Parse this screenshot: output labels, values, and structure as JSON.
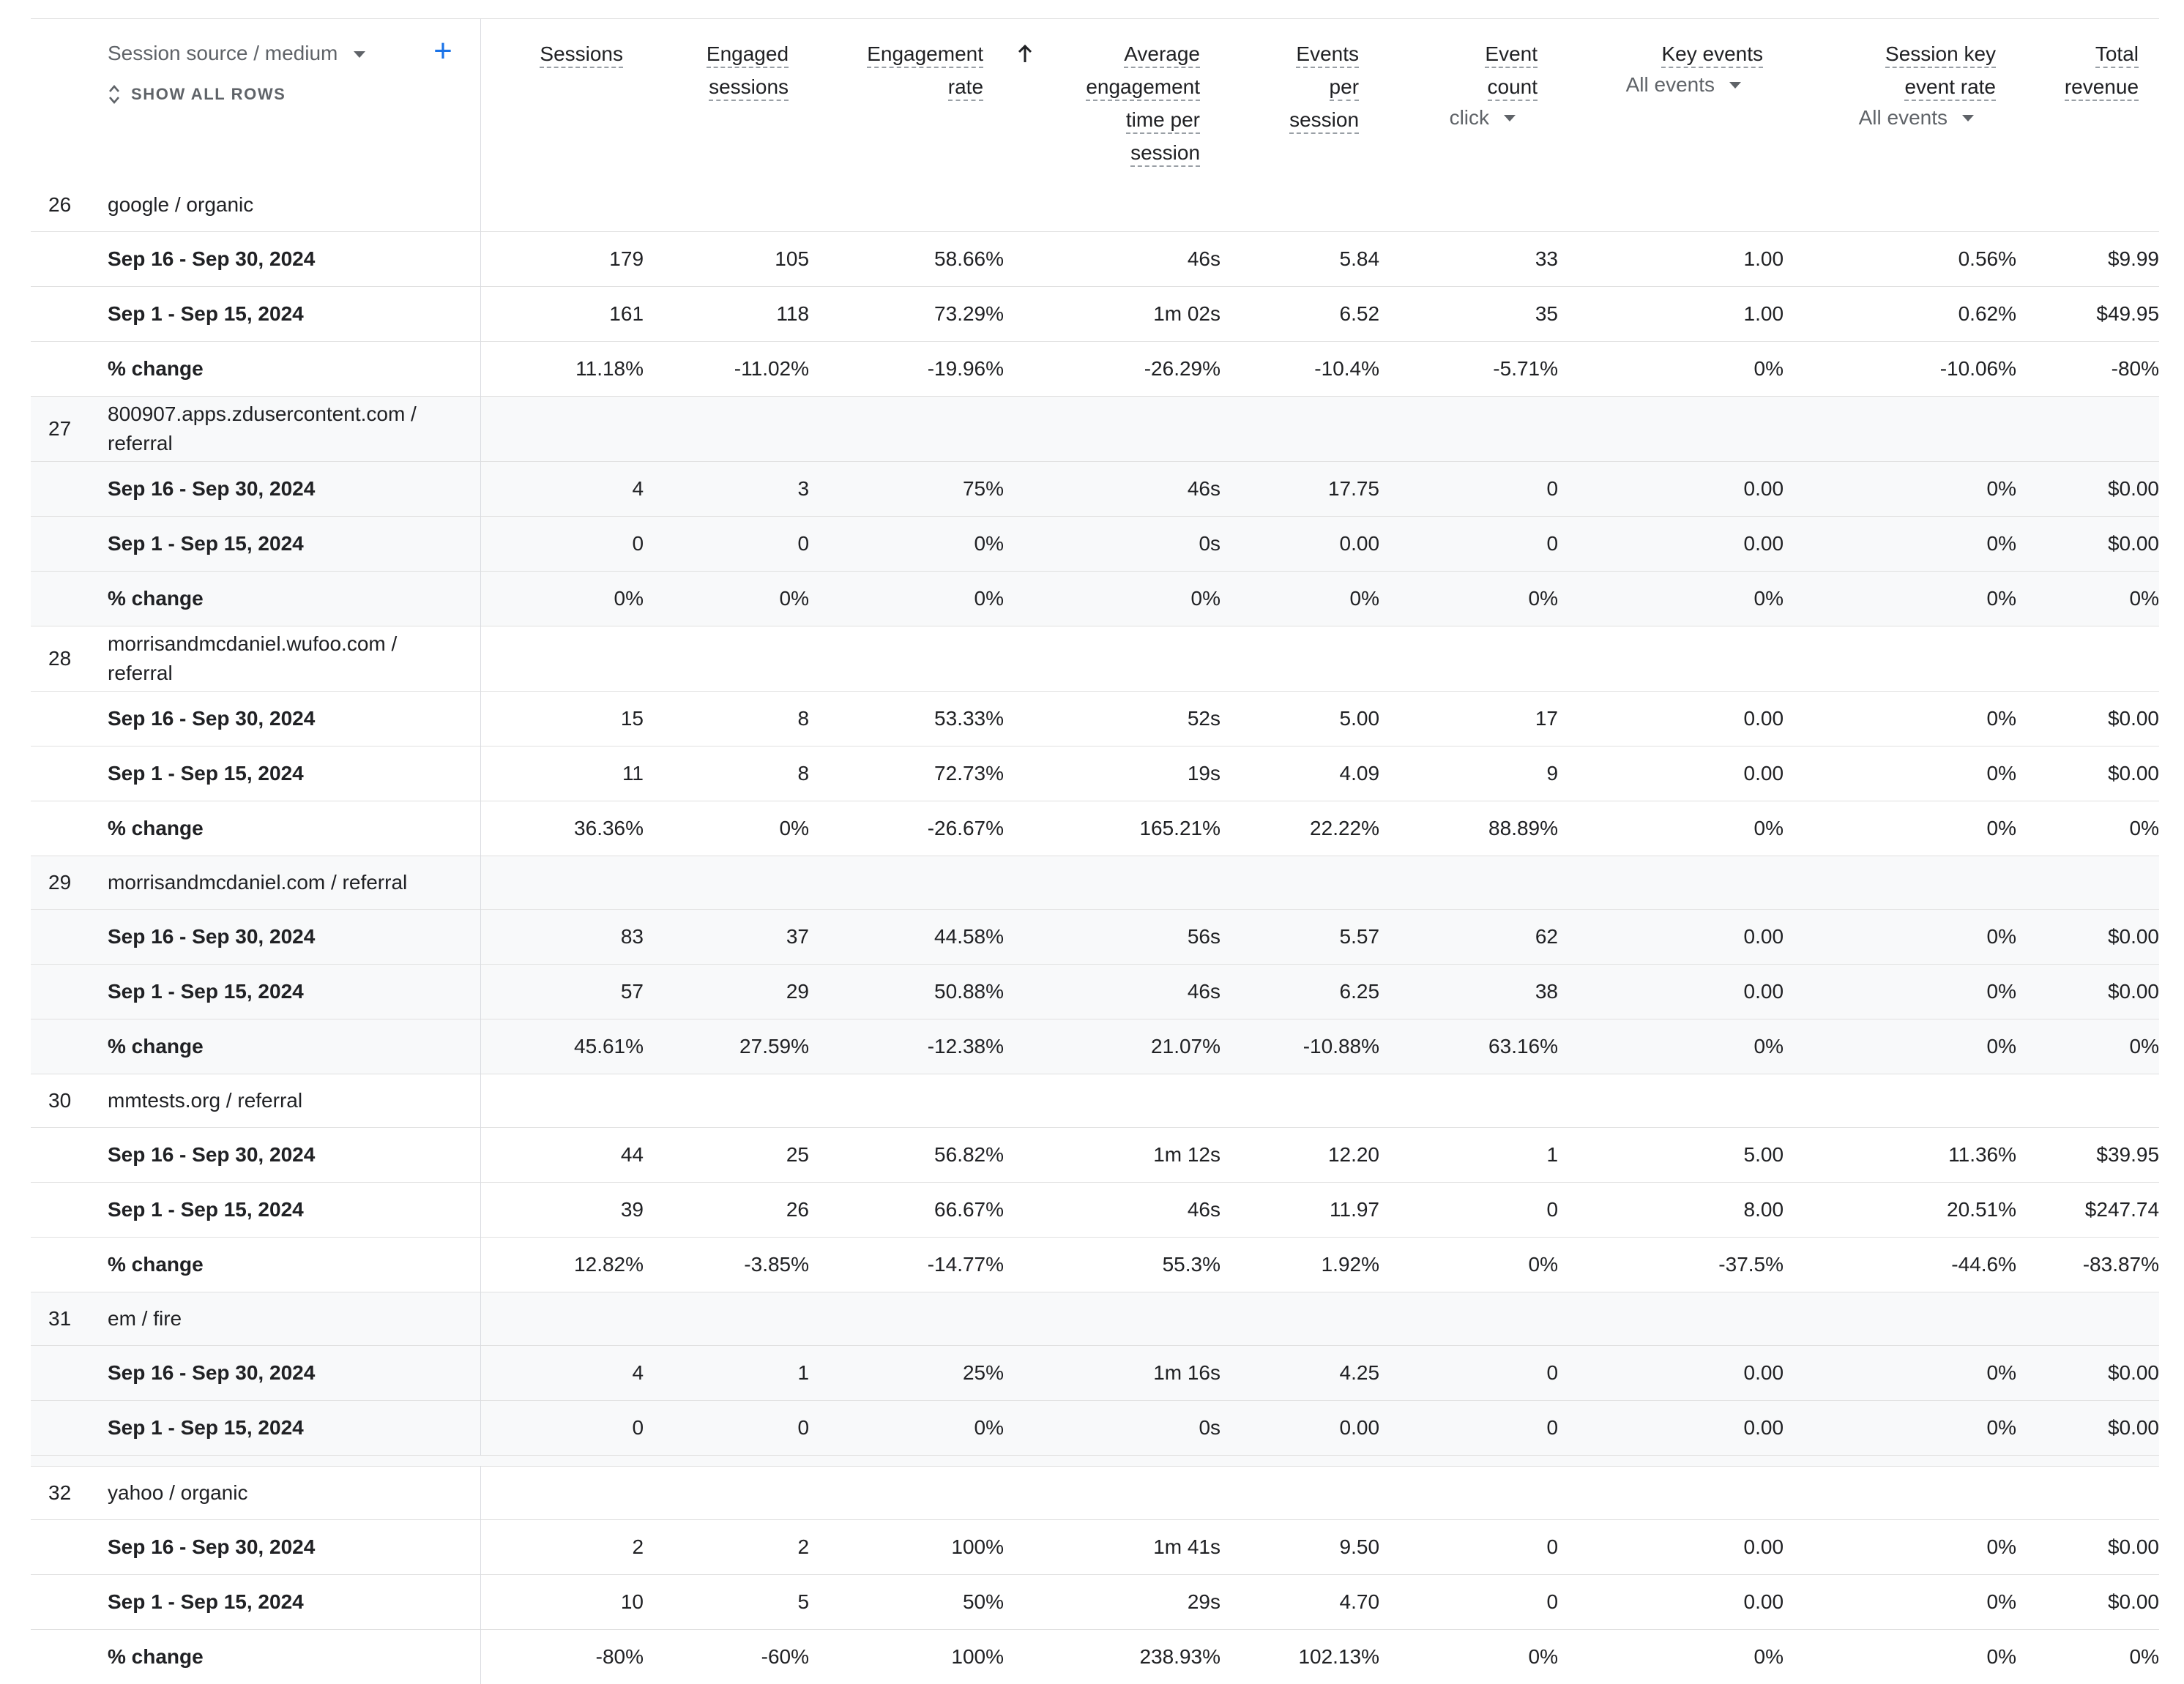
{
  "header": {
    "dimension_label": "Session source / medium",
    "add_button": "+",
    "show_all_rows": "SHOW ALL ROWS",
    "columns": [
      {
        "key": "sessions",
        "lines": [
          "Sessions"
        ],
        "sub": ""
      },
      {
        "key": "engaged",
        "lines": [
          "Engaged",
          "sessions"
        ],
        "sub": ""
      },
      {
        "key": "rate",
        "lines": [
          "Engagement",
          "rate"
        ],
        "sub": "",
        "sorted": true
      },
      {
        "key": "avgtime",
        "lines": [
          "Average",
          "engagement",
          "time per",
          "session"
        ],
        "sub": ""
      },
      {
        "key": "eps",
        "lines": [
          "Events",
          "per",
          "session"
        ],
        "sub": ""
      },
      {
        "key": "evcount",
        "lines": [
          "Event",
          "count"
        ],
        "sub": "click"
      },
      {
        "key": "keyev",
        "lines": [
          "Key events"
        ],
        "sub": "All events"
      },
      {
        "key": "skr",
        "lines": [
          "Session key",
          "event rate"
        ],
        "sub": "All events"
      },
      {
        "key": "rev",
        "lines": [
          "Total",
          "revenue"
        ],
        "sub": ""
      }
    ]
  },
  "groups": [
    {
      "num": "26",
      "name": [
        "google / organic"
      ],
      "shaded": false,
      "rows": [
        {
          "label": "Sep 16 - Sep 30, 2024",
          "values": [
            "179",
            "105",
            "58.66%",
            "46s",
            "5.84",
            "33",
            "1.00",
            "0.56%",
            "$9.99"
          ]
        },
        {
          "label": "Sep 1 - Sep 15, 2024",
          "values": [
            "161",
            "118",
            "73.29%",
            "1m 02s",
            "6.52",
            "35",
            "1.00",
            "0.62%",
            "$49.95"
          ]
        },
        {
          "label": "% change",
          "values": [
            "11.18%",
            "-11.02%",
            "-19.96%",
            "-26.29%",
            "-10.4%",
            "-5.71%",
            "0%",
            "-10.06%",
            "-80%"
          ]
        }
      ]
    },
    {
      "num": "27",
      "name": [
        "800907.apps.zdusercontent.com /",
        "referral"
      ],
      "shaded": true,
      "rows": [
        {
          "label": "Sep 16 - Sep 30, 2024",
          "values": [
            "4",
            "3",
            "75%",
            "46s",
            "17.75",
            "0",
            "0.00",
            "0%",
            "$0.00"
          ]
        },
        {
          "label": "Sep 1 - Sep 15, 2024",
          "values": [
            "0",
            "0",
            "0%",
            "0s",
            "0.00",
            "0",
            "0.00",
            "0%",
            "$0.00"
          ]
        },
        {
          "label": "% change",
          "values": [
            "0%",
            "0%",
            "0%",
            "0%",
            "0%",
            "0%",
            "0%",
            "0%",
            "0%"
          ]
        }
      ]
    },
    {
      "num": "28",
      "name": [
        "morrisandmcdaniel.wufoo.com /",
        "referral"
      ],
      "shaded": false,
      "rows": [
        {
          "label": "Sep 16 - Sep 30, 2024",
          "values": [
            "15",
            "8",
            "53.33%",
            "52s",
            "5.00",
            "17",
            "0.00",
            "0%",
            "$0.00"
          ]
        },
        {
          "label": "Sep 1 - Sep 15, 2024",
          "values": [
            "11",
            "8",
            "72.73%",
            "19s",
            "4.09",
            "9",
            "0.00",
            "0%",
            "$0.00"
          ]
        },
        {
          "label": "% change",
          "values": [
            "36.36%",
            "0%",
            "-26.67%",
            "165.21%",
            "22.22%",
            "88.89%",
            "0%",
            "0%",
            "0%"
          ]
        }
      ]
    },
    {
      "num": "29",
      "name": [
        "morrisandmcdaniel.com / referral"
      ],
      "shaded": true,
      "rows": [
        {
          "label": "Sep 16 - Sep 30, 2024",
          "values": [
            "83",
            "37",
            "44.58%",
            "56s",
            "5.57",
            "62",
            "0.00",
            "0%",
            "$0.00"
          ]
        },
        {
          "label": "Sep 1 - Sep 15, 2024",
          "values": [
            "57",
            "29",
            "50.88%",
            "46s",
            "6.25",
            "38",
            "0.00",
            "0%",
            "$0.00"
          ]
        },
        {
          "label": "% change",
          "values": [
            "45.61%",
            "27.59%",
            "-12.38%",
            "21.07%",
            "-10.88%",
            "63.16%",
            "0%",
            "0%",
            "0%"
          ]
        }
      ]
    },
    {
      "num": "30",
      "name": [
        "mmtests.org / referral"
      ],
      "shaded": false,
      "rows": [
        {
          "label": "Sep 16 - Sep 30, 2024",
          "values": [
            "44",
            "25",
            "56.82%",
            "1m 12s",
            "12.20",
            "1",
            "5.00",
            "11.36%",
            "$39.95"
          ]
        },
        {
          "label": "Sep 1 - Sep 15, 2024",
          "values": [
            "39",
            "26",
            "66.67%",
            "46s",
            "11.97",
            "0",
            "8.00",
            "20.51%",
            "$247.74"
          ]
        },
        {
          "label": "% change",
          "values": [
            "12.82%",
            "-3.85%",
            "-14.77%",
            "55.3%",
            "1.92%",
            "0%",
            "-37.5%",
            "-44.6%",
            "-83.87%"
          ]
        }
      ]
    },
    {
      "num": "31",
      "name": [
        "em / fire"
      ],
      "shaded": true,
      "cut": true,
      "rows": [
        {
          "label": "Sep 16 - Sep 30, 2024",
          "values": [
            "4",
            "1",
            "25%",
            "1m 16s",
            "4.25",
            "0",
            "0.00",
            "0%",
            "$0.00"
          ]
        },
        {
          "label": "Sep 1 - Sep 15, 2024",
          "values": [
            "0",
            "0",
            "0%",
            "0s",
            "0.00",
            "0",
            "0.00",
            "0%",
            "$0.00"
          ]
        }
      ]
    },
    {
      "num": "32",
      "name": [
        "yahoo / organic"
      ],
      "shaded": false,
      "rows": [
        {
          "label": "Sep 16 - Sep 30, 2024",
          "values": [
            "2",
            "2",
            "100%",
            "1m 41s",
            "9.50",
            "0",
            "0.00",
            "0%",
            "$0.00"
          ]
        },
        {
          "label": "Sep 1 - Sep 15, 2024",
          "values": [
            "10",
            "5",
            "50%",
            "29s",
            "4.70",
            "0",
            "0.00",
            "0%",
            "$0.00"
          ]
        },
        {
          "label": "% change",
          "values": [
            "-80%",
            "-60%",
            "100%",
            "238.93%",
            "102.13%",
            "0%",
            "0%",
            "0%",
            "0%"
          ]
        }
      ]
    }
  ]
}
